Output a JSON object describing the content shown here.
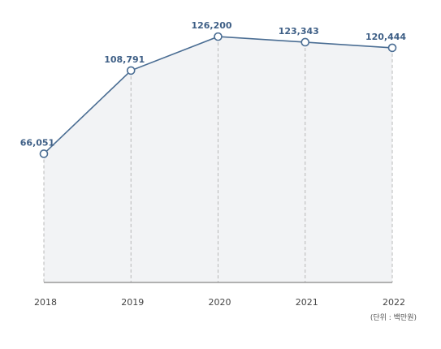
{
  "chart_data": {
    "type": "area",
    "title": "",
    "xlabel": "",
    "ylabel": "",
    "categories": [
      "2018",
      "2019",
      "2020",
      "2021",
      "2022"
    ],
    "series": [
      {
        "values": [
          66051,
          108791,
          126200,
          123343,
          120444
        ],
        "labels": [
          "66,051",
          "108,791",
          "126,200",
          "123,343",
          "120,444"
        ]
      }
    ],
    "ylim": [
      0,
      145000
    ],
    "grid": false,
    "legend": "none",
    "unit_note": "(단위 : 백만원)",
    "colors": {
      "line": "#4a6d93",
      "fill": "#f2f3f5",
      "label": "#3e5f86",
      "guide": "#b8b8b8",
      "axis": "#999999"
    }
  }
}
